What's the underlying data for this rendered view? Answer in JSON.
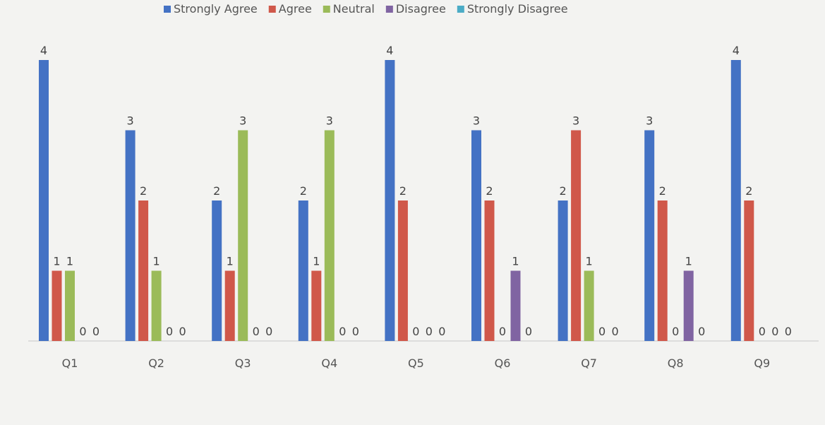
{
  "chart_data": {
    "type": "bar",
    "categories": [
      "Q1",
      "Q2",
      "Q3",
      "Q4",
      "Q5",
      "Q6",
      "Q7",
      "Q8",
      "Q9"
    ],
    "series": [
      {
        "name": "Strongly Agree",
        "color": "#4472c4",
        "values": [
          4,
          3,
          2,
          2,
          4,
          3,
          2,
          3,
          4
        ]
      },
      {
        "name": "Agree",
        "color": "#d0584a",
        "values": [
          1,
          2,
          1,
          1,
          2,
          2,
          3,
          2,
          2
        ]
      },
      {
        "name": "Neutral",
        "color": "#9bbb59",
        "values": [
          1,
          1,
          3,
          3,
          0,
          0,
          1,
          0,
          0
        ]
      },
      {
        "name": "Disagree",
        "color": "#8064a2",
        "values": [
          0,
          0,
          0,
          0,
          0,
          1,
          0,
          1,
          0
        ]
      },
      {
        "name": "Strongly Disagree",
        "color": "#4bacc6",
        "values": [
          0,
          0,
          0,
          0,
          0,
          0,
          0,
          0,
          0
        ]
      }
    ],
    "ylim": [
      0,
      4
    ],
    "grid": false,
    "legend": "top",
    "title": "",
    "xlabel": "",
    "ylabel": ""
  }
}
